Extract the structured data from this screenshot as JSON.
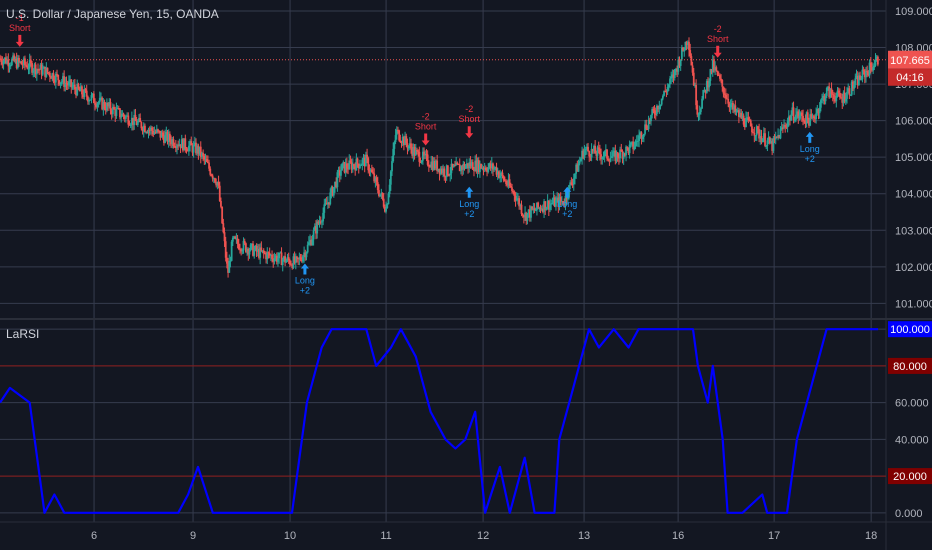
{
  "header": {
    "title": "U.S. Dollar / Japanese Yen, 15, OANDA"
  },
  "indicator": {
    "title": "LaRSI"
  },
  "colors": {
    "background": "#131722",
    "grid": "#363c4e",
    "up_candle": "#26a69a",
    "down_candle": "#ef5350",
    "rsi_line": "#0000ff",
    "band_line": "#8b1a1a",
    "price_badge": "#ef5350",
    "rsi_badge": "#0000ff",
    "band_badge": "#800000",
    "long_signal": "#2196f3",
    "short_signal": "#f23645"
  },
  "chart_data": [
    {
      "type": "candlestick",
      "title": "U.S. Dollar / Japanese Yen, 15, OANDA",
      "x_ticks": [
        "6",
        "9",
        "10",
        "11",
        "12",
        "13",
        "16",
        "17",
        "18"
      ],
      "y_ticks": [
        "101.000",
        "102.000",
        "103.000",
        "104.000",
        "105.000",
        "106.000",
        "107.000",
        "108.000",
        "109.000"
      ],
      "ylim": [
        100.6,
        109.3
      ],
      "grid": true,
      "last_price": "107.665",
      "countdown": "04:16",
      "close_path": [
        [
          0,
          107.7
        ],
        [
          0.3,
          107.5
        ],
        [
          0.5,
          107.3
        ],
        [
          0.8,
          106.8
        ],
        [
          1.2,
          106.2
        ],
        [
          1.7,
          105.5
        ],
        [
          2.0,
          105.2
        ],
        [
          2.2,
          104.3
        ],
        [
          2.3,
          101.8
        ],
        [
          2.35,
          102.7
        ],
        [
          2.6,
          102.4
        ],
        [
          3.0,
          102.1
        ],
        [
          3.1,
          102.5
        ],
        [
          3.3,
          103.7
        ],
        [
          3.45,
          104.7
        ],
        [
          3.7,
          104.9
        ],
        [
          3.9,
          103.6
        ],
        [
          4.0,
          105.7
        ],
        [
          4.2,
          105.1
        ],
        [
          4.5,
          104.6
        ],
        [
          4.75,
          104.8
        ],
        [
          5.0,
          104.7
        ],
        [
          5.2,
          104.0
        ],
        [
          5.3,
          103.4
        ],
        [
          5.5,
          103.7
        ],
        [
          5.7,
          103.8
        ],
        [
          5.8,
          104.5
        ],
        [
          5.9,
          105.2
        ],
        [
          6.2,
          105.0
        ],
        [
          6.4,
          105.3
        ],
        [
          6.6,
          106.2
        ],
        [
          6.8,
          107.2
        ],
        [
          6.95,
          108.3
        ],
        [
          7.05,
          106.2
        ],
        [
          7.2,
          107.5
        ],
        [
          7.4,
          106.3
        ],
        [
          7.6,
          105.8
        ],
        [
          7.8,
          105.3
        ],
        [
          8.0,
          106.2
        ],
        [
          8.2,
          106.0
        ],
        [
          8.35,
          106.8
        ],
        [
          8.5,
          106.6
        ],
        [
          8.7,
          107.2
        ],
        [
          8.87,
          107.665
        ]
      ]
    },
    {
      "type": "line",
      "title": "LaRSI",
      "y_ticks": [
        "0.000",
        "20.000",
        "40.000",
        "60.000",
        "80.000",
        "100.000"
      ],
      "ylim": [
        -5,
        105
      ],
      "bands": [
        80,
        20
      ],
      "last_value": "100.000",
      "series": [
        {
          "values": [
            [
              0,
              60
            ],
            [
              0.1,
              68
            ],
            [
              0.3,
              60
            ],
            [
              0.4,
              20
            ],
            [
              0.45,
              0
            ],
            [
              0.55,
              10
            ],
            [
              0.65,
              0
            ],
            [
              1.8,
              0
            ],
            [
              1.9,
              10
            ],
            [
              2.0,
              25
            ],
            [
              2.15,
              0
            ],
            [
              2.3,
              0
            ],
            [
              2.95,
              0
            ],
            [
              3.1,
              60
            ],
            [
              3.25,
              90
            ],
            [
              3.35,
              100
            ],
            [
              3.7,
              100
            ],
            [
              3.8,
              80
            ],
            [
              3.95,
              90
            ],
            [
              4.05,
              100
            ],
            [
              4.2,
              85
            ],
            [
              4.35,
              55
            ],
            [
              4.5,
              40
            ],
            [
              4.6,
              35
            ],
            [
              4.7,
              40
            ],
            [
              4.8,
              55
            ],
            [
              4.9,
              0
            ],
            [
              5.05,
              25
            ],
            [
              5.15,
              0
            ],
            [
              5.3,
              30
            ],
            [
              5.4,
              0
            ],
            [
              5.6,
              0
            ],
            [
              5.65,
              40
            ],
            [
              5.8,
              70
            ],
            [
              5.95,
              100
            ],
            [
              6.05,
              90
            ],
            [
              6.2,
              100
            ],
            [
              6.35,
              90
            ],
            [
              6.45,
              100
            ],
            [
              7.0,
              100
            ],
            [
              7.05,
              80
            ],
            [
              7.15,
              60
            ],
            [
              7.2,
              80
            ],
            [
              7.3,
              40
            ],
            [
              7.35,
              0
            ],
            [
              7.5,
              0
            ],
            [
              7.7,
              10
            ],
            [
              7.75,
              0
            ],
            [
              7.95,
              0
            ],
            [
              8.05,
              40
            ],
            [
              8.2,
              70
            ],
            [
              8.35,
              100
            ],
            [
              8.87,
              100
            ]
          ]
        }
      ]
    }
  ],
  "signals": [
    {
      "type": "short",
      "value": "-1",
      "label": "Short",
      "at": [
        0.2,
        107.8
      ]
    },
    {
      "type": "long",
      "value": "+2",
      "label": "Long",
      "at": [
        3.08,
        102.2
      ]
    },
    {
      "type": "short",
      "value": "-2",
      "label": "Short",
      "at": [
        4.3,
        105.1
      ]
    },
    {
      "type": "short",
      "value": "-2",
      "label": "Short",
      "at": [
        4.74,
        105.3
      ]
    },
    {
      "type": "long",
      "value": "+2",
      "label": "Long",
      "at": [
        4.74,
        104.3
      ]
    },
    {
      "type": "long",
      "value": "+2",
      "label": "Long",
      "at": [
        5.73,
        104.3
      ]
    },
    {
      "type": "short",
      "value": "-2",
      "label": "Short",
      "at": [
        7.25,
        107.5
      ]
    },
    {
      "type": "long",
      "value": "+2",
      "label": "Long",
      "at": [
        8.18,
        105.8
      ]
    }
  ]
}
